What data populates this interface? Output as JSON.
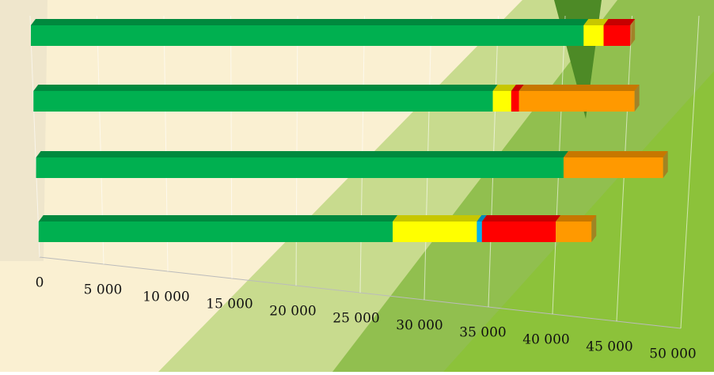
{
  "chart_data": {
    "type": "bar3d_stacked_horizontal",
    "categories": [
      null,
      null,
      null,
      null
    ],
    "series": [
      {
        "color": "#00b050",
        "values": [
          41500,
          35000,
          40800,
          27800
        ]
      },
      {
        "color": "#ffff00",
        "values": [
          1500,
          1400,
          null,
          6600
        ]
      },
      {
        "color": "#00b0f0",
        "values": [
          null,
          null,
          null,
          400
        ]
      },
      {
        "color": "#ff0000",
        "values": [
          2000,
          600,
          null,
          5800
        ]
      },
      {
        "color": "#ff9900",
        "values": [
          null,
          8800,
          7700,
          2800
        ]
      }
    ],
    "xlim": [
      0,
      50000
    ],
    "xticks": [
      0,
      {
        "value": 5000,
        "label": "5 000"
      },
      {
        "value": 10000,
        "label": "10 000"
      },
      {
        "value": 15000,
        "label": "15 000"
      },
      {
        "value": 20000,
        "label": "20 000"
      },
      {
        "value": 25000,
        "label": "25 000"
      },
      {
        "value": 30000,
        "label": "30 000"
      },
      {
        "value": 35000,
        "label": "35 000"
      },
      {
        "value": 40000,
        "label": "40 000"
      },
      {
        "value": 45000,
        "label": "45 000"
      },
      {
        "value": 50000,
        "label": "50 000"
      }
    ],
    "grid": true
  }
}
